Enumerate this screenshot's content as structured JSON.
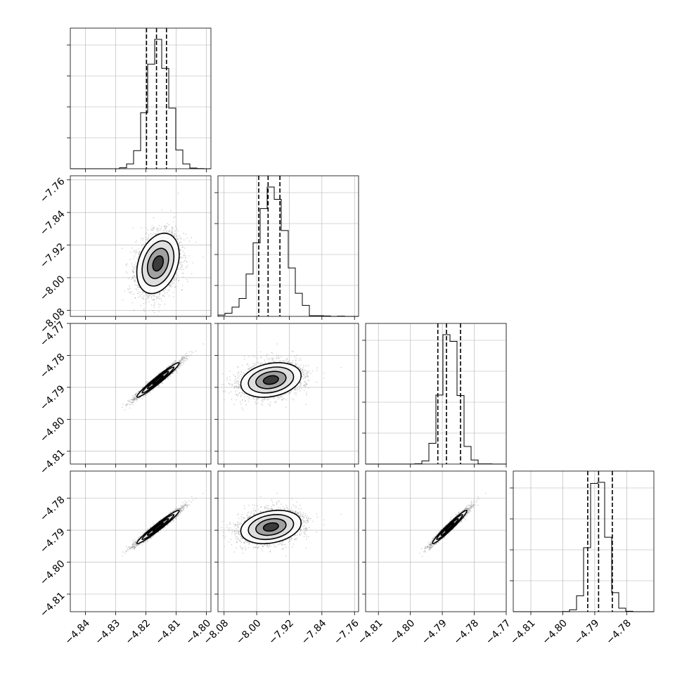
{
  "chart_data": {
    "type": "scatter",
    "subtype": "corner-plot",
    "grid": true,
    "parameters": [
      {
        "ticks": [
          -4.84,
          -4.83,
          -4.82,
          -4.81,
          -4.8
        ],
        "tick_labels": [
          "−4.84",
          "−4.83",
          "−4.82",
          "−4.81",
          "−4.80"
        ],
        "range": [
          -4.845,
          -4.7985
        ],
        "mean": -4.816,
        "sd": 0.0035,
        "quantiles": [
          -4.8198,
          -4.8165,
          -4.8132
        ]
      },
      {
        "ticks": [
          -8.08,
          -8.0,
          -7.92,
          -7.84,
          -7.76
        ],
        "tick_labels": [
          "−8.08",
          "−8.00",
          "−7.92",
          "−7.84",
          "−7.76"
        ],
        "range": [
          -8.095,
          -7.75
        ],
        "mean": -7.965,
        "sd": 0.037,
        "quantiles": [
          -7.995,
          -7.972,
          -7.943
        ]
      },
      {
        "ticks": [
          -4.81,
          -4.8,
          -4.79,
          -4.78,
          -4.77
        ],
        "tick_labels": [
          "−4.81",
          "−4.80",
          "−4.79",
          "−4.78",
          "−4.77"
        ],
        "range": [
          -4.814,
          -4.77
        ],
        "mean": -4.7877,
        "sd": 0.0027,
        "quantiles": [
          -4.7914,
          -4.7887,
          -4.7843
        ]
      },
      {
        "ticks": [
          -4.81,
          -4.8,
          -4.79,
          -4.78
        ],
        "tick_labels": [
          "−4.81",
          "−4.80",
          "−4.79",
          "−4.78"
        ],
        "range": [
          -4.8155,
          -4.7715
        ],
        "mean": -4.789,
        "sd": 0.0026,
        "quantiles": [
          -4.7922,
          -4.7888,
          -4.7845
        ]
      }
    ],
    "correlations": [
      [
        1.0,
        0.3,
        0.97,
        0.97
      ],
      [
        0.3,
        1.0,
        0.25,
        0.25
      ],
      [
        0.97,
        0.25,
        1.0,
        0.97
      ],
      [
        0.97,
        0.25,
        0.97,
        1.0
      ]
    ],
    "histogram_bins": 20,
    "contour_levels_sigma": [
      0.5,
      1.0,
      1.5,
      2.0
    ],
    "colors": {
      "ink": "#000000",
      "scatter": "#777777",
      "grid": "#b0b0b0"
    }
  }
}
